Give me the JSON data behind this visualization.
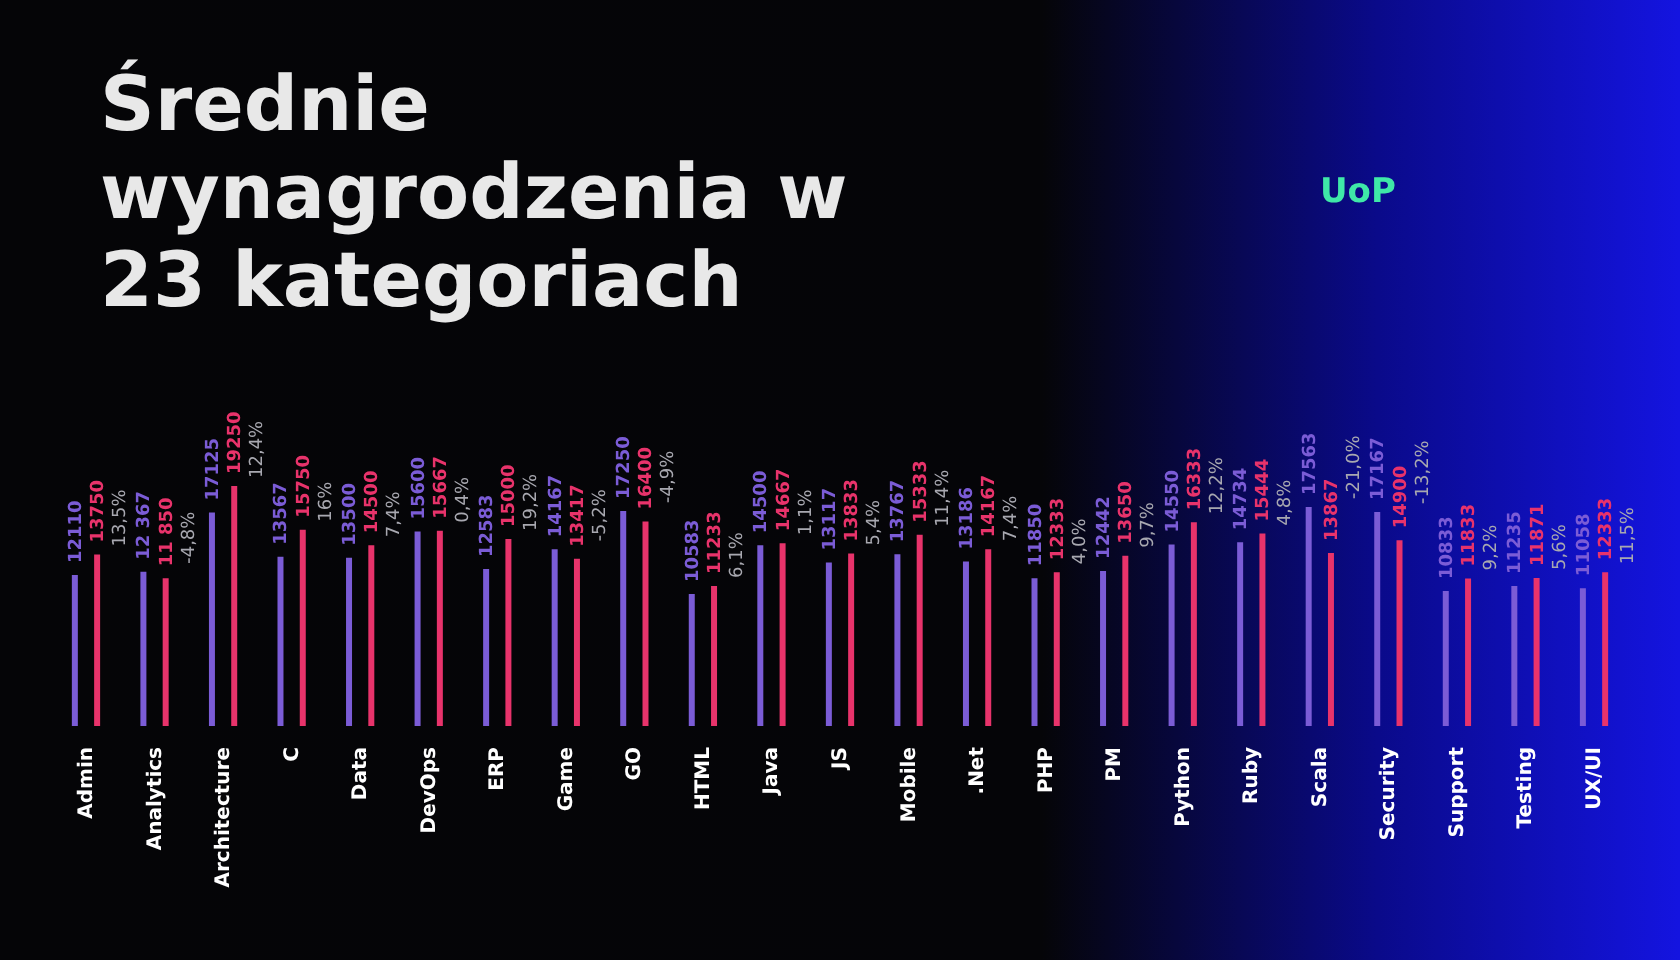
{
  "chart_data": {
    "type": "bar",
    "title": "Średnie wynagrodzenia w 23 kategoriach",
    "categories": [
      "Admin",
      "Analytics",
      "Architecture",
      "C",
      "Data",
      "DevOps",
      "ERP",
      "Game",
      "GO",
      "HTML",
      "Java",
      "JS",
      "Mobile",
      ".Net",
      "PHP",
      "PM",
      "Python",
      "Ruby",
      "Scala",
      "Security",
      "Support",
      "Testing",
      "UX/UI"
    ],
    "series": [
      {
        "color": "#7b5cd6",
        "values": [
          12110,
          12367,
          17125,
          13567,
          13500,
          15600,
          12583,
          14167,
          17250,
          10583,
          14500,
          13117,
          13767,
          13186,
          11850,
          12442,
          14550,
          14734,
          17563,
          17167,
          10833,
          11235,
          11058
        ],
        "value_labels": [
          "12110",
          "12 367",
          "17125",
          "13567",
          "13500",
          "15600",
          "12583",
          "14167",
          "17250",
          "10583",
          "14500",
          "13117",
          "13767",
          "13186",
          "11850",
          "12442",
          "14550",
          "14734",
          "17563",
          "17167",
          "10833",
          "11235",
          "11058"
        ]
      },
      {
        "color": "#e8336b",
        "values": [
          13750,
          11850,
          19250,
          15750,
          14500,
          15667,
          15000,
          13417,
          16400,
          11233,
          14667,
          13833,
          15333,
          14167,
          12333,
          13650,
          16333,
          15444,
          13867,
          14900,
          11833,
          11871,
          12333
        ],
        "value_labels": [
          "13750",
          "11 850",
          "19250",
          "15750",
          "14500",
          "15667",
          "15000",
          "13417",
          "16400",
          "11233",
          "14667",
          "13833",
          "15333",
          "14167",
          "12333",
          "13650",
          "16333",
          "15444",
          "13867",
          "14900",
          "11833",
          "11871",
          "12333"
        ]
      }
    ],
    "annotations": [
      "UoP",
      {
        "text": "13,5%",
        "x": "Admin",
        "y": 13750
      },
      {
        "text": "-4,8%",
        "x": "Analytics",
        "y": 12367
      },
      {
        "text": "12,4%",
        "x": "Architecture",
        "y": 19250
      },
      {
        "text": "16%",
        "x": "C",
        "y": 15750
      },
      {
        "text": "7,4%",
        "x": "Data",
        "y": 14500
      },
      {
        "text": "0,4%",
        "x": "DevOps",
        "y": 15667
      },
      {
        "text": "19,2%",
        "x": "ERP",
        "y": 15000
      },
      {
        "text": "-5,2%",
        "x": "Game",
        "y": 14167
      },
      {
        "text": "-4,9%",
        "x": "GO",
        "y": 17250
      },
      {
        "text": "6,1%",
        "x": "HTML",
        "y": 11233
      },
      {
        "text": "1,1%",
        "x": "Java",
        "y": 14667
      },
      {
        "text": "5,4%",
        "x": "JS",
        "y": 13833
      },
      {
        "text": "11,4%",
        "x": "Mobile",
        "y": 15333
      },
      {
        "text": "7,4%",
        "x": ".Net",
        "y": 14167
      },
      {
        "text": "4,0%",
        "x": "PHP",
        "y": 12333
      },
      {
        "text": "9,7%",
        "x": "PM",
        "y": 13650
      },
      {
        "text": "12,2%",
        "x": "Python",
        "y": 16333
      },
      {
        "text": "4,8%",
        "x": "Ruby",
        "y": 15444
      },
      {
        "text": "-21,0%",
        "x": "Scala",
        "y": 17563
      },
      {
        "text": "-13,2%",
        "x": "Security",
        "y": 17167
      },
      {
        "text": "9,2%",
        "x": "Support",
        "y": 11833
      },
      {
        "text": "5,6%",
        "x": "Testing",
        "y": 11871
      },
      {
        "text": "11,5%",
        "x": "UX/UI",
        "y": 12333
      }
    ],
    "legend": false,
    "grid": false
  }
}
